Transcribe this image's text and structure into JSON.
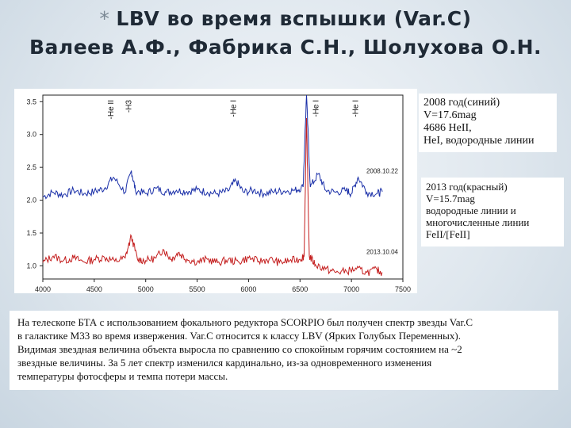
{
  "header": {
    "bullet": "*",
    "title_line1": "LBV во время вспышки (Var.C)",
    "title_line2": "Валеев А.Ф., Фабрика С.Н., Шолухова О.Н."
  },
  "legend_2008": [
    "2008 год(синий)",
    "V=17.6mag",
    "4686 HeII,",
    "HeI, водородные линии"
  ],
  "legend_2013": [
    "2013 год(красный)",
    "V=15.7mag",
    "водородные линии и",
    "многочисленные линии",
    "FeII/[FeII]"
  ],
  "caption": [
    "На телескопе БТА с использованием фокального редуктора SCORPIO был получен спектр звезды Var.C",
    "в галактике M33  во время извержения. Var.C относится к классу LBV (Ярких Голубых Переменных).",
    " Видимая звездная величина объекта выросла по сравнению со спокойным горячим состоянием на ~2",
    "звездные величины. За 5 лет спектр изменился кардинально, из-за одновременного изменения",
    "температуры фотосферы и темпа потери массы."
  ],
  "chart_data": {
    "type": "line",
    "title": "",
    "xlabel": "",
    "ylabel": "",
    "xlim": [
      4000,
      7500
    ],
    "ylim": [
      0.8,
      3.6
    ],
    "x_ticks": [
      "4000",
      "4500",
      "5000",
      "5500",
      "6000",
      "6500",
      "7000",
      "7500"
    ],
    "y_ticks": [
      "1.0",
      "1.5",
      "2.0",
      "2.5",
      "3.0",
      "3.5"
    ],
    "colors": {
      "blue": "#1a2fa8",
      "red": "#c41e1e"
    },
    "series": [
      {
        "name": "2008.10.22",
        "color": "blue",
        "x": [
          4000,
          4100,
          4200,
          4300,
          4400,
          4500,
          4600,
          4686,
          4800,
          4861,
          4900,
          5000,
          5100,
          5200,
          5300,
          5400,
          5500,
          5600,
          5700,
          5800,
          5876,
          5950,
          6050,
          6150,
          6250,
          6350,
          6450,
          6530,
          6563,
          6600,
          6678,
          6750,
          6850,
          6950,
          7000,
          7065,
          7150,
          7250,
          7300
        ],
        "y": [
          2.05,
          2.12,
          2.08,
          2.15,
          2.1,
          2.13,
          2.18,
          2.35,
          2.12,
          2.45,
          2.15,
          2.1,
          2.18,
          2.12,
          2.15,
          2.13,
          2.16,
          2.12,
          2.1,
          2.14,
          2.3,
          2.12,
          2.15,
          2.1,
          2.13,
          2.14,
          2.15,
          2.2,
          3.6,
          2.2,
          2.4,
          2.15,
          2.12,
          2.15,
          2.1,
          2.35,
          2.12,
          2.1,
          2.13
        ]
      },
      {
        "name": "2013.10.04",
        "color": "red",
        "x": [
          4000,
          4100,
          4200,
          4300,
          4400,
          4500,
          4600,
          4700,
          4800,
          4861,
          4920,
          5000,
          5100,
          5169,
          5250,
          5316,
          5400,
          5500,
          5600,
          5700,
          5800,
          5900,
          6000,
          6100,
          6200,
          6300,
          6400,
          6500,
          6540,
          6563,
          6590,
          6650,
          6750,
          6850,
          6950,
          7050,
          7150,
          7250,
          7300
        ],
        "y": [
          1.05,
          1.15,
          1.08,
          1.12,
          1.06,
          1.1,
          1.13,
          1.07,
          1.12,
          1.45,
          1.1,
          1.08,
          1.12,
          1.25,
          1.1,
          1.2,
          1.1,
          1.06,
          1.1,
          1.05,
          1.09,
          1.06,
          1.12,
          1.07,
          1.1,
          1.05,
          1.08,
          1.1,
          1.15,
          3.25,
          1.15,
          1.02,
          0.95,
          0.9,
          0.92,
          0.95,
          0.9,
          0.94,
          0.9
        ]
      }
    ],
    "line_labels": [
      {
        "text": "-He II",
        "x": 4686
      },
      {
        "text": "-H3",
        "x": 4861
      },
      {
        "text": "-He I",
        "x": 5876
      },
      {
        "text": "-He I",
        "x": 6678
      },
      {
        "text": "-He I",
        "x": 7065
      }
    ]
  }
}
